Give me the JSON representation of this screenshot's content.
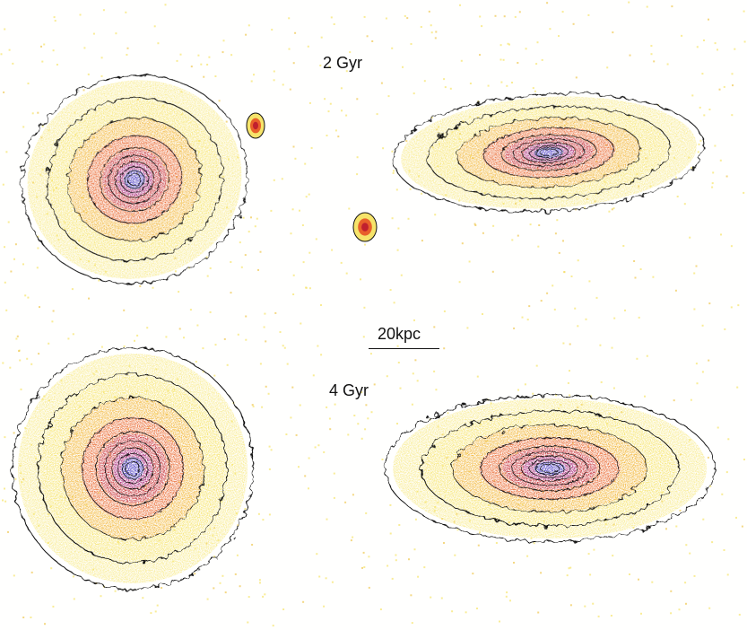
{
  "labels": {
    "time_top": "2 Gyr",
    "time_bottom": "4 Gyr",
    "scale": "20kpc"
  },
  "colors": {
    "background": "#fffffe",
    "outer": "#f6e46a",
    "mid": "#f2b030",
    "inner": "#e8602a",
    "core": "#c0202e",
    "nucleus": "#4030c0",
    "contour": "#111111"
  },
  "panels": [
    {
      "id": "2gyr-face-on",
      "view": "face-on",
      "time": "2 Gyr"
    },
    {
      "id": "2gyr-edge-on",
      "view": "edge-on",
      "time": "2 Gyr"
    },
    {
      "id": "4gyr-face-on",
      "view": "face-on",
      "time": "4 Gyr"
    },
    {
      "id": "4gyr-edge-on",
      "view": "edge-on",
      "time": "4 Gyr"
    }
  ]
}
